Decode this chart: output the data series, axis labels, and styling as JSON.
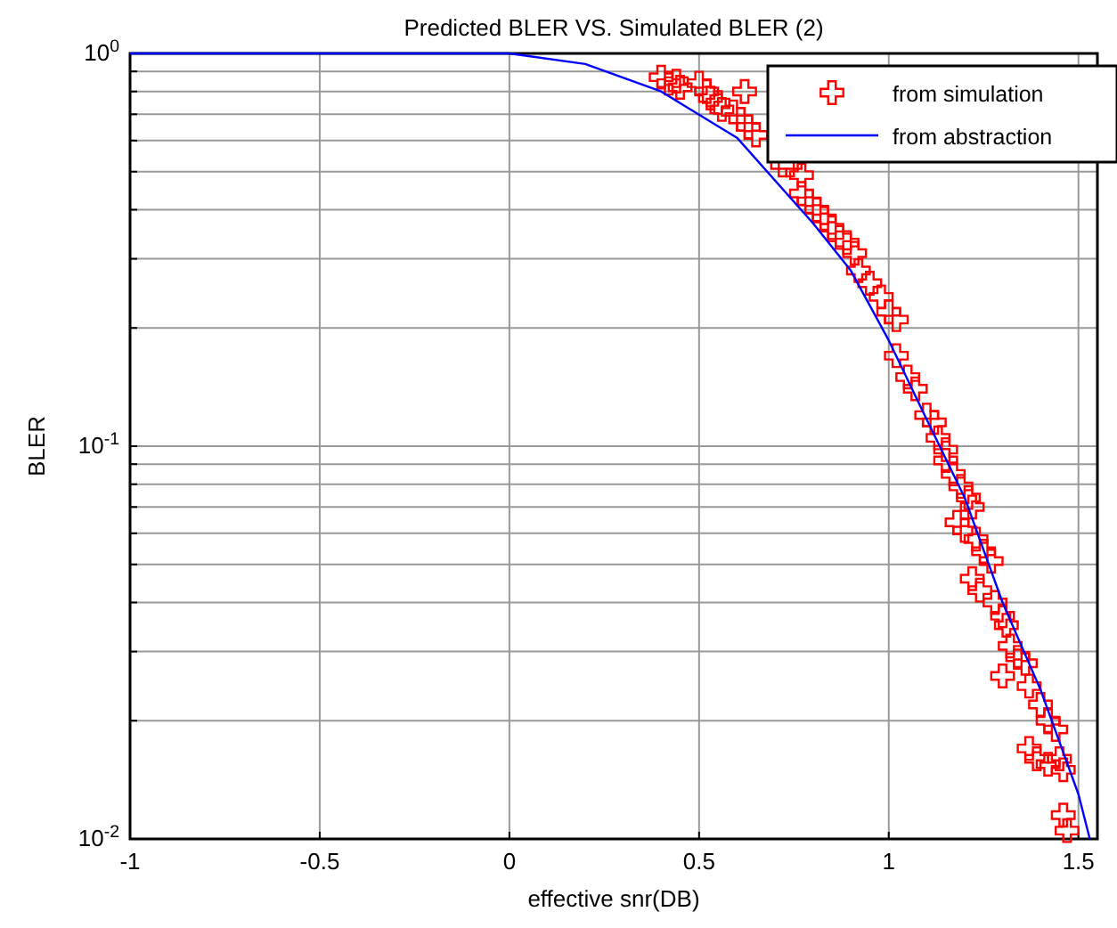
{
  "chart_data": {
    "type": "scatter",
    "title": "Predicted BLER VS. Simulated BLER (2)",
    "xlabel": "effective snr(DB)",
    "ylabel": "BLER",
    "log": "y",
    "grid": true,
    "legend": "top right",
    "xlim": [
      -1,
      1.55
    ],
    "xticks": [
      -1,
      -0.5,
      0,
      0.5,
      1,
      1.5
    ],
    "ylim": [
      0.01,
      1
    ],
    "yticks": [
      {
        "value": 0.01,
        "label": "10$^{-2}$"
      },
      {
        "value": 0.02,
        "label": null
      },
      {
        "value": 0.03,
        "label": null
      },
      {
        "value": 0.04,
        "label": null
      },
      {
        "value": 0.05,
        "label": null
      },
      {
        "value": 0.06,
        "label": null
      },
      {
        "value": 0.07,
        "label": null
      },
      {
        "value": 0.08,
        "label": null
      },
      {
        "value": 0.09,
        "label": null
      },
      {
        "value": 0.1,
        "label": "10$^{-1}$"
      },
      {
        "value": 0.2,
        "label": null
      },
      {
        "value": 0.3,
        "label": null
      },
      {
        "value": 0.4,
        "label": null
      },
      {
        "value": 0.5,
        "label": null
      },
      {
        "value": 0.6,
        "label": null
      },
      {
        "value": 0.7,
        "label": null
      },
      {
        "value": 0.8,
        "label": null
      },
      {
        "value": 0.9,
        "label": null
      },
      {
        "value": 1,
        "label": "10$^{0}$"
      }
    ],
    "series": [
      {
        "name": "from simulation",
        "marker": "cross",
        "color": "#ff0000",
        "x": [
          0.4,
          0.42,
          0.44,
          0.45,
          0.5,
          0.52,
          0.53,
          0.55,
          0.56,
          0.62,
          0.59,
          0.61,
          0.63,
          0.65,
          0.72,
          0.74,
          0.77,
          0.77,
          0.79,
          0.81,
          0.83,
          0.85,
          0.87,
          0.89,
          0.91,
          0.92,
          0.95,
          0.98,
          1.0,
          1.02,
          1.02,
          1.05,
          1.07,
          1.1,
          1.12,
          1.13,
          1.15,
          1.15,
          1.17,
          1.19,
          1.21,
          1.22,
          1.18,
          1.2,
          1.23,
          1.25,
          1.27,
          1.22,
          1.24,
          1.28,
          1.3,
          1.31,
          1.32,
          1.34,
          1.36,
          1.3,
          1.37,
          1.4,
          1.42,
          1.44,
          1.37,
          1.39,
          1.42,
          1.45,
          1.46,
          1.46,
          1.47
        ],
        "values": [
          0.87,
          0.84,
          0.85,
          0.82,
          0.84,
          0.8,
          0.77,
          0.75,
          0.72,
          0.8,
          0.71,
          0.68,
          0.65,
          0.62,
          0.52,
          0.52,
          0.49,
          0.44,
          0.42,
          0.4,
          0.38,
          0.36,
          0.34,
          0.33,
          0.31,
          0.28,
          0.26,
          0.24,
          0.22,
          0.21,
          0.17,
          0.15,
          0.14,
          0.12,
          0.115,
          0.105,
          0.098,
          0.092,
          0.085,
          0.079,
          0.074,
          0.07,
          0.064,
          0.061,
          0.058,
          0.054,
          0.051,
          0.046,
          0.043,
          0.04,
          0.037,
          0.035,
          0.031,
          0.029,
          0.028,
          0.026,
          0.0245,
          0.022,
          0.02,
          0.019,
          0.017,
          0.016,
          0.0155,
          0.016,
          0.015,
          0.0115,
          0.0105
        ]
      },
      {
        "name": "from abstraction",
        "type": "line",
        "marker": "none",
        "line_style": "solid",
        "color": "#0000ff",
        "x": [
          -1,
          0,
          0.2,
          0.4,
          0.6,
          0.8,
          0.9,
          1.0,
          1.1,
          1.2,
          1.3,
          1.4,
          1.5,
          1.53
        ],
        "values": [
          1,
          1,
          0.94,
          0.8,
          0.61,
          0.37,
          0.28,
          0.186,
          0.117,
          0.074,
          0.04,
          0.024,
          0.013,
          0.01
        ]
      }
    ]
  }
}
